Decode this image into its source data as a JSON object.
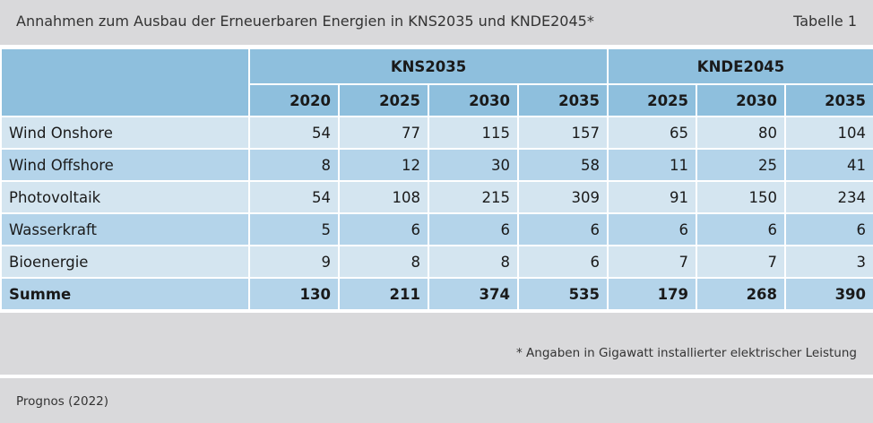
{
  "header": {
    "title": "Annahmen zum Ausbau der Erneuerbaren Energien in KNS2035 und KNDE2045*",
    "table_number": "Tabelle 1"
  },
  "table": {
    "groups": [
      "KNS2035",
      "KNDE2045"
    ],
    "years": [
      "2020",
      "2025",
      "2030",
      "2035",
      "2025",
      "2030",
      "2035"
    ],
    "rows": [
      {
        "label": "Wind Onshore",
        "values": [
          "54",
          "77",
          "115",
          "157",
          "65",
          "80",
          "104"
        ]
      },
      {
        "label": "Wind Offshore",
        "values": [
          "8",
          "12",
          "30",
          "58",
          "11",
          "25",
          "41"
        ]
      },
      {
        "label": "Photovoltaik",
        "values": [
          "54",
          "108",
          "215",
          "309",
          "91",
          "150",
          "234"
        ]
      },
      {
        "label": "Wasserkraft",
        "values": [
          "5",
          "6",
          "6",
          "6",
          "6",
          "6",
          "6"
        ]
      },
      {
        "label": "Bioenergie",
        "values": [
          "9",
          "8",
          "8",
          "6",
          "7",
          "7",
          "3"
        ]
      }
    ],
    "total": {
      "label": "Summe",
      "values": [
        "130",
        "211",
        "374",
        "535",
        "179",
        "268",
        "390"
      ]
    }
  },
  "footnote": "* Angaben in Gigawatt installierter elektrischer Leistung",
  "source": "Prognos (2022)",
  "colors": {
    "header_bg": "#d9d9db",
    "table_head": "#8ebfdd",
    "row_light": "#d4e5f0",
    "row_dark": "#b4d4ea"
  }
}
